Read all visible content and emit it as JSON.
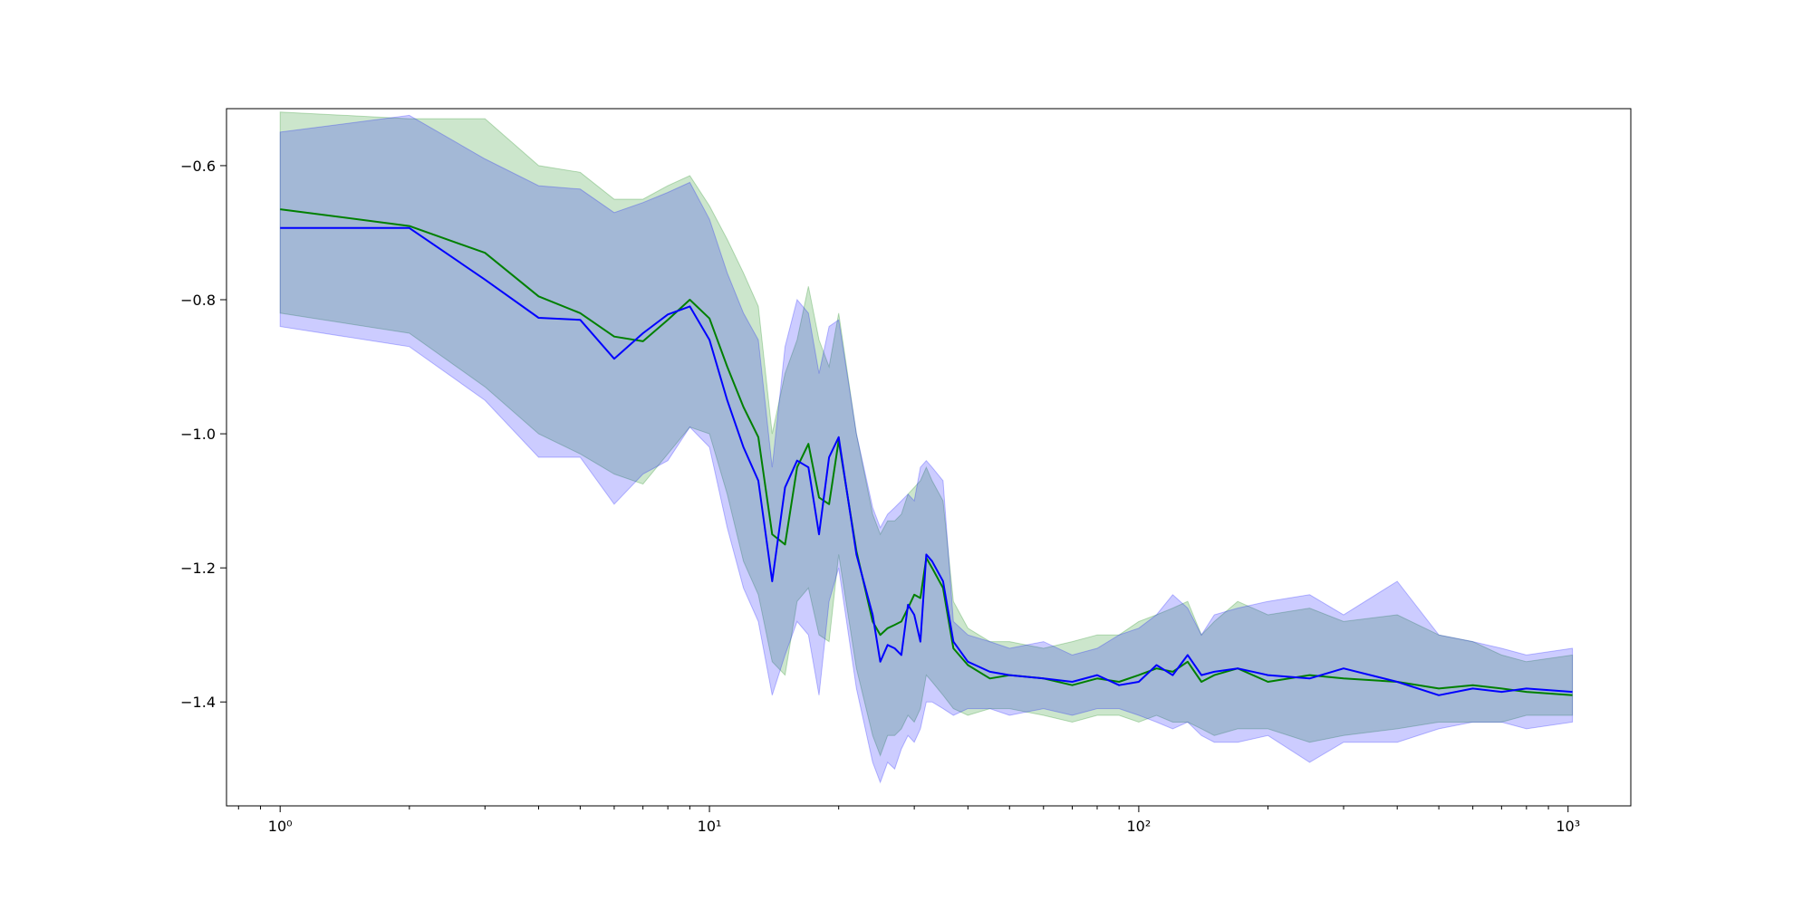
{
  "chart_data": {
    "type": "line",
    "title": "",
    "xlabel": "",
    "ylabel": "",
    "xscale": "log",
    "xlim": [
      0.75,
      1400
    ],
    "ylim": [
      -1.555,
      -0.515
    ],
    "grid": false,
    "legend": "none",
    "x_ticks": [
      {
        "value": 1,
        "label": "10⁰"
      },
      {
        "value": 10,
        "label": "10¹"
      },
      {
        "value": 100,
        "label": "10²"
      },
      {
        "value": 1000,
        "label": "10³"
      }
    ],
    "y_ticks": [
      {
        "value": -0.6,
        "label": "−0.6"
      },
      {
        "value": -0.8,
        "label": "−0.8"
      },
      {
        "value": -1.0,
        "label": "−1.0"
      },
      {
        "value": -1.2,
        "label": "−1.2"
      },
      {
        "value": -1.4,
        "label": "−1.4"
      }
    ],
    "series": [
      {
        "color": "#008000",
        "band_alpha": 0.2,
        "x": [
          1,
          2,
          3,
          4,
          5,
          6,
          7,
          8,
          9,
          10,
          11,
          12,
          13,
          14,
          15,
          16,
          17,
          18,
          19,
          20,
          22,
          24,
          25,
          26,
          27,
          28,
          29,
          30,
          31,
          32,
          33,
          35,
          37,
          40,
          45,
          50,
          60,
          70,
          80,
          90,
          100,
          110,
          120,
          130,
          140,
          150,
          170,
          200,
          250,
          300,
          400,
          500,
          600,
          700,
          800,
          1024
        ],
        "values": [
          -0.665,
          -0.69,
          -0.73,
          -0.795,
          -0.82,
          -0.855,
          -0.862,
          -0.83,
          -0.8,
          -0.828,
          -0.9,
          -0.96,
          -1.005,
          -1.15,
          -1.165,
          -1.05,
          -1.015,
          -1.095,
          -1.105,
          -1.01,
          -1.175,
          -1.28,
          -1.3,
          -1.29,
          -1.285,
          -1.28,
          -1.26,
          -1.24,
          -1.245,
          -1.185,
          -1.2,
          -1.23,
          -1.32,
          -1.345,
          -1.365,
          -1.36,
          -1.365,
          -1.375,
          -1.365,
          -1.37,
          -1.36,
          -1.35,
          -1.355,
          -1.34,
          -1.37,
          -1.36,
          -1.35,
          -1.37,
          -1.36,
          -1.365,
          -1.37,
          -1.38,
          -1.375,
          -1.38,
          -1.385,
          -1.39
        ],
        "upper": [
          -0.52,
          -0.53,
          -0.53,
          -0.6,
          -0.61,
          -0.65,
          -0.65,
          -0.63,
          -0.615,
          -0.66,
          -0.71,
          -0.76,
          -0.81,
          -1.0,
          -0.91,
          -0.86,
          -0.78,
          -0.86,
          -0.9,
          -0.82,
          -1.0,
          -1.12,
          -1.15,
          -1.13,
          -1.13,
          -1.12,
          -1.09,
          -1.08,
          -1.07,
          -1.05,
          -1.07,
          -1.1,
          -1.25,
          -1.29,
          -1.31,
          -1.31,
          -1.32,
          -1.31,
          -1.3,
          -1.3,
          -1.28,
          -1.27,
          -1.26,
          -1.25,
          -1.3,
          -1.28,
          -1.25,
          -1.27,
          -1.26,
          -1.28,
          -1.27,
          -1.3,
          -1.31,
          -1.33,
          -1.34,
          -1.33
        ],
        "lower": [
          -0.82,
          -0.85,
          -0.93,
          -1.0,
          -1.03,
          -1.06,
          -1.075,
          -1.03,
          -0.99,
          -1.0,
          -1.09,
          -1.19,
          -1.24,
          -1.34,
          -1.36,
          -1.25,
          -1.23,
          -1.3,
          -1.31,
          -1.18,
          -1.35,
          -1.45,
          -1.48,
          -1.45,
          -1.45,
          -1.44,
          -1.42,
          -1.43,
          -1.41,
          -1.36,
          -1.37,
          -1.39,
          -1.41,
          -1.42,
          -1.41,
          -1.41,
          -1.42,
          -1.43,
          -1.42,
          -1.42,
          -1.43,
          -1.42,
          -1.43,
          -1.43,
          -1.44,
          -1.45,
          -1.44,
          -1.44,
          -1.46,
          -1.45,
          -1.44,
          -1.43,
          -1.43,
          -1.43,
          -1.42,
          -1.42
        ]
      },
      {
        "color": "#0000ff",
        "band_alpha": 0.2,
        "x": [
          1,
          2,
          3,
          4,
          5,
          6,
          7,
          8,
          9,
          10,
          11,
          12,
          13,
          14,
          15,
          16,
          17,
          18,
          19,
          20,
          22,
          24,
          25,
          26,
          27,
          28,
          29,
          30,
          31,
          32,
          33,
          35,
          37,
          40,
          45,
          50,
          60,
          70,
          80,
          90,
          100,
          110,
          120,
          130,
          140,
          150,
          170,
          200,
          250,
          300,
          400,
          500,
          600,
          700,
          800,
          1024
        ],
        "values": [
          -0.693,
          -0.693,
          -0.77,
          -0.827,
          -0.83,
          -0.888,
          -0.85,
          -0.822,
          -0.81,
          -0.86,
          -0.95,
          -1.02,
          -1.07,
          -1.22,
          -1.08,
          -1.04,
          -1.05,
          -1.15,
          -1.035,
          -1.005,
          -1.18,
          -1.27,
          -1.34,
          -1.315,
          -1.32,
          -1.33,
          -1.255,
          -1.27,
          -1.31,
          -1.18,
          -1.19,
          -1.22,
          -1.31,
          -1.34,
          -1.355,
          -1.36,
          -1.365,
          -1.37,
          -1.36,
          -1.375,
          -1.37,
          -1.345,
          -1.36,
          -1.33,
          -1.36,
          -1.355,
          -1.35,
          -1.36,
          -1.365,
          -1.35,
          -1.37,
          -1.39,
          -1.38,
          -1.385,
          -1.38,
          -1.385
        ],
        "upper": [
          -0.55,
          -0.525,
          -0.59,
          -0.63,
          -0.635,
          -0.67,
          -0.655,
          -0.64,
          -0.625,
          -0.68,
          -0.76,
          -0.82,
          -0.86,
          -1.05,
          -0.87,
          -0.8,
          -0.82,
          -0.91,
          -0.84,
          -0.83,
          -1.0,
          -1.11,
          -1.14,
          -1.12,
          -1.11,
          -1.1,
          -1.09,
          -1.1,
          -1.05,
          -1.04,
          -1.05,
          -1.07,
          -1.28,
          -1.3,
          -1.31,
          -1.32,
          -1.31,
          -1.33,
          -1.32,
          -1.3,
          -1.29,
          -1.27,
          -1.24,
          -1.26,
          -1.3,
          -1.27,
          -1.26,
          -1.25,
          -1.24,
          -1.27,
          -1.22,
          -1.3,
          -1.31,
          -1.32,
          -1.33,
          -1.32
        ],
        "lower": [
          -0.84,
          -0.87,
          -0.95,
          -1.035,
          -1.035,
          -1.105,
          -1.06,
          -1.04,
          -0.99,
          -1.02,
          -1.14,
          -1.23,
          -1.28,
          -1.39,
          -1.33,
          -1.28,
          -1.3,
          -1.39,
          -1.25,
          -1.2,
          -1.38,
          -1.49,
          -1.52,
          -1.49,
          -1.5,
          -1.47,
          -1.45,
          -1.46,
          -1.44,
          -1.4,
          -1.4,
          -1.41,
          -1.42,
          -1.41,
          -1.41,
          -1.42,
          -1.41,
          -1.42,
          -1.41,
          -1.41,
          -1.42,
          -1.43,
          -1.44,
          -1.43,
          -1.45,
          -1.46,
          -1.46,
          -1.45,
          -1.49,
          -1.46,
          -1.46,
          -1.44,
          -1.43,
          -1.43,
          -1.44,
          -1.43
        ]
      }
    ]
  }
}
